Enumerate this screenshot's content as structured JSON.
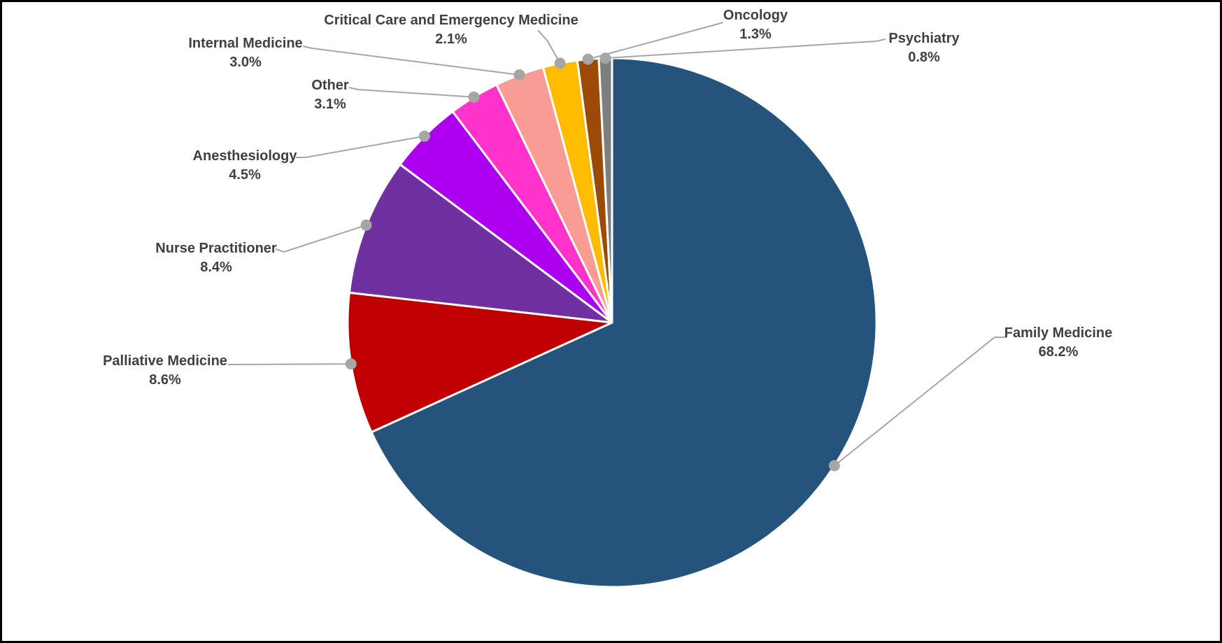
{
  "chart_data": {
    "type": "pie",
    "title": "",
    "legend_position": "none",
    "labels_style": "callout-with-leader-lines",
    "background": "#FFFFFF",
    "frame_border_color": "#000000",
    "leader_line_color": "#A6A6A6",
    "label_text_color": "#404040",
    "start_angle_deg": 0,
    "direction": "clockwise",
    "unit": "%",
    "slices": [
      {
        "label": "Family Medicine",
        "value": 68.2,
        "pct_label": "68.2%",
        "color": "#24537C"
      },
      {
        "label": "Palliative Medicine",
        "value": 8.6,
        "pct_label": "8.6%",
        "color": "#C00000"
      },
      {
        "label": "Nurse Practitioner",
        "value": 8.4,
        "pct_label": "8.4%",
        "color": "#7030A0"
      },
      {
        "label": "Anesthesiology",
        "value": 4.5,
        "pct_label": "4.5%",
        "color": "#AC00F0"
      },
      {
        "label": "Other",
        "value": 3.1,
        "pct_label": "3.1%",
        "color": "#FF33CC"
      },
      {
        "label": "Internal Medicine",
        "value": 3.0,
        "pct_label": "3.0%",
        "color": "#F99C94"
      },
      {
        "label": "Critical Care and Emergency Medicine",
        "value": 2.1,
        "pct_label": "2.1%",
        "color": "#FFBB00"
      },
      {
        "label": "Oncology",
        "value": 1.3,
        "pct_label": "1.3%",
        "color": "#9C4A06"
      },
      {
        "label": "Psychiatry",
        "value": 0.8,
        "pct_label": "0.8%",
        "color": "#7F7F7F"
      }
    ]
  }
}
